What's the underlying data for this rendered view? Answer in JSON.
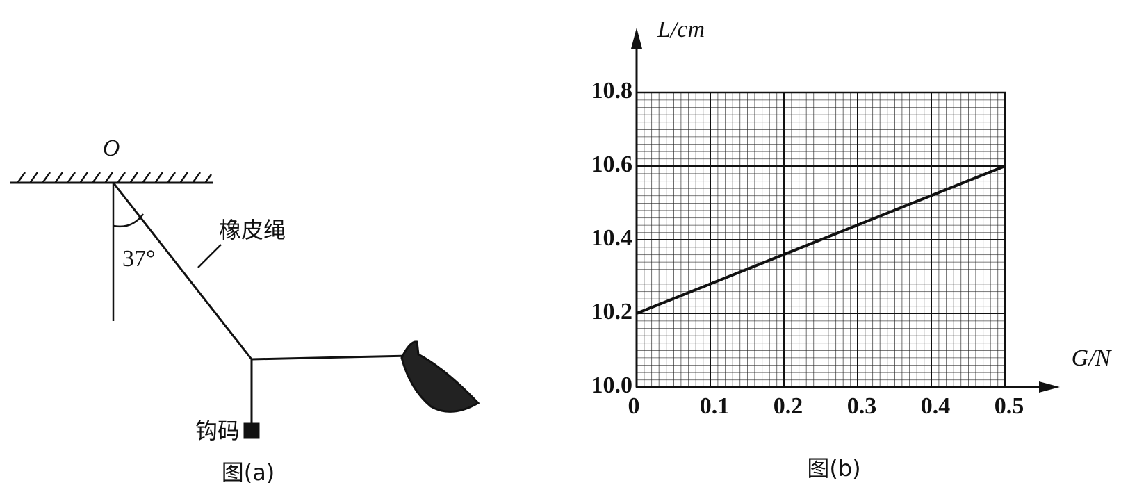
{
  "figure_a": {
    "point_label": "O",
    "angle_label": "37°",
    "rope_label": "橡皮绳",
    "weight_label": "钩码",
    "caption": "图(a)"
  },
  "chart_data": {
    "type": "line",
    "caption": "图(b)",
    "x_label": "G/N",
    "y_label": "L/cm",
    "x": [
      0,
      0.5
    ],
    "values": [
      10.2,
      10.6
    ],
    "color": "#111111",
    "xlim": [
      0,
      0.5
    ],
    "ylim": [
      10,
      10.8
    ],
    "xticks": [
      0,
      0.1,
      0.2,
      0.3,
      0.4,
      0.5
    ],
    "yticks": [
      {
        "value": 10,
        "label": "10.0"
      },
      10.2,
      10.4,
      10.6,
      10.8
    ],
    "grid": true
  }
}
